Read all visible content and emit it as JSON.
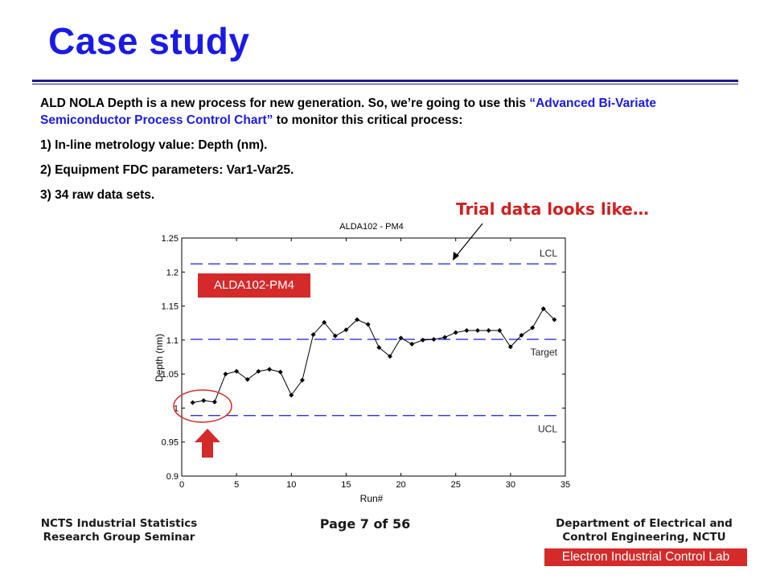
{
  "slide": {
    "title": "Case study",
    "paragraphs": {
      "intro_a": "ALD NOLA Depth is a new process for new generation. So, we’re going to use this ",
      "intro_highlight": "“Advanced Bi-Variate Semiconductor Process Control Chart”",
      "intro_b": " to monitor this critical process:",
      "item1": "1) In-line metrology value: Depth (nm).",
      "item2": "2) Equipment  FDC parameters:  Var1-Var25.",
      "item3": "3) 34 raw data sets."
    },
    "callout": "Trial data looks like…",
    "tag_label": "ALDA102-PM4",
    "colors": {
      "title": "#1a1ae6",
      "highlight": "#1a1ae6",
      "callout": "#d02020",
      "accent_red": "#d42a2a",
      "rule": "#1a1a8c",
      "limit_line": "#1a1ae6"
    }
  },
  "chart_data": {
    "type": "line",
    "title": "ALDA102 - PM4",
    "xlabel": "Run#",
    "ylabel": "Depth (nm)",
    "xlim": [
      0,
      35
    ],
    "ylim": [
      0.9,
      1.25
    ],
    "x_ticks": [
      0,
      5,
      10,
      15,
      20,
      25,
      30,
      35
    ],
    "y_ticks": [
      0.9,
      0.95,
      1,
      1.05,
      1.1,
      1.15,
      1.2,
      1.25
    ],
    "y_tick_labels": [
      "0.9",
      "0.95",
      "1",
      "1.05",
      "1.1",
      "1.15",
      "1.2",
      "1.25"
    ],
    "grid": false,
    "series": [
      {
        "x": [
          1,
          2,
          3,
          4,
          5,
          6,
          7,
          8,
          9,
          10,
          11,
          12,
          13,
          14,
          15,
          16,
          17,
          18,
          19,
          20,
          21,
          22,
          23,
          24,
          25,
          26,
          27,
          28,
          29,
          30,
          31,
          32,
          33,
          34
        ],
        "values": [
          1.008,
          1.011,
          1.009,
          1.05,
          1.054,
          1.042,
          1.054,
          1.057,
          1.053,
          1.019,
          1.041,
          1.108,
          1.126,
          1.106,
          1.115,
          1.13,
          1.123,
          1.089,
          1.076,
          1.103,
          1.094,
          1.1,
          1.101,
          1.104,
          1.111,
          1.114,
          1.114,
          1.114,
          1.114,
          1.09,
          1.107,
          1.118,
          1.146,
          1.13
        ]
      }
    ],
    "limits": [
      {
        "label": "LCL",
        "value": 1.212
      },
      {
        "label": "Target",
        "value": 1.101
      },
      {
        "label": "UCL",
        "value": 0.989
      }
    ]
  },
  "footer": {
    "left": "NCTS Industrial Statistics Research Group Seminar",
    "page": "Page 7 of 56",
    "right": "Department of Electrical and Control Engineering, NCTU",
    "lab": "Electron Industrial Control Lab"
  }
}
